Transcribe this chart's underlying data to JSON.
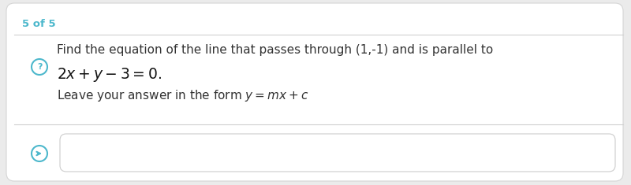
{
  "background_color": "#ebebeb",
  "card_color": "#ffffff",
  "label_5of5": "5 of 5",
  "label_5of5_color": "#4db8cc",
  "label_5of5_fontsize": 9.5,
  "divider_color": "#d0d0d0",
  "icon_color": "#4db8cc",
  "question_text_line1": "Find the equation of the line that passes through (1,-1) and is parallel to",
  "question_text_fontsize": 11.0,
  "question_text_color": "#333333",
  "math_line": "$2x + y - 3 = 0.$",
  "math_line_fontsize": 13.5,
  "math_line_color": "#111111",
  "form_prefix": "Leave your answer in the form ",
  "form_math": "$y = mx + c$",
  "form_fontsize": 11.0,
  "answer_box_color": "#ffffff",
  "answer_box_border": "#cccccc",
  "arrow_color": "#4db8cc"
}
